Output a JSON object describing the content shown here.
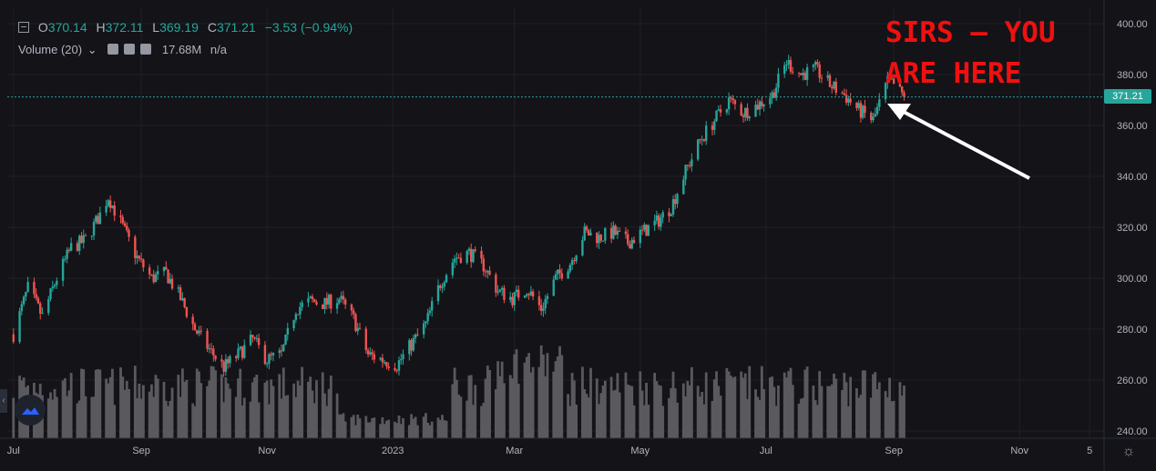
{
  "legend": {
    "open_label": "O",
    "open": "370.14",
    "high_label": "H",
    "high": "372.11",
    "low_label": "L",
    "low": "369.19",
    "close_label": "C",
    "close": "371.21",
    "change": "−3.53 (−0.94%)"
  },
  "volume_legend": {
    "label": "Volume (20)",
    "chevron": "⌄",
    "value": "17.68M",
    "extra": "n/a"
  },
  "annotation": {
    "line1": "SIRS — YOU",
    "line2": "ARE HERE"
  },
  "price_tag": "371.21",
  "icons": {
    "logo": "tradingview-cloud-icon",
    "settings": "gear-icon",
    "side_tab": "chevron-left-icon"
  },
  "colors": {
    "up": "#26a69a",
    "down": "#ef5350",
    "volume": "#5a5a5e",
    "background": "#131318",
    "annotation": "#f01010"
  },
  "chart_data": {
    "type": "candlestick",
    "title": "",
    "y_axis": {
      "ticks": [
        "400.00",
        "380.00",
        "360.00",
        "340.00",
        "320.00",
        "300.00",
        "280.00",
        "260.00",
        "240.00"
      ],
      "ylim": [
        240,
        400
      ]
    },
    "x_axis": {
      "ticks": [
        "Jul",
        "Sep",
        "Nov",
        "2023",
        "Mar",
        "May",
        "Jul",
        "Sep",
        "Nov",
        "5"
      ]
    },
    "grid": true,
    "last_price": 371.21,
    "price_path": [
      [
        "2022-07-01",
        278
      ],
      [
        "2022-07-08",
        296
      ],
      [
        "2022-07-15",
        285
      ],
      [
        "2022-07-22",
        300
      ],
      [
        "2022-07-29",
        312
      ],
      [
        "2022-08-05",
        315
      ],
      [
        "2022-08-12",
        325
      ],
      [
        "2022-08-16",
        332
      ],
      [
        "2022-08-23",
        320
      ],
      [
        "2022-08-30",
        308
      ],
      [
        "2022-09-06",
        300
      ],
      [
        "2022-09-13",
        302
      ],
      [
        "2022-09-20",
        292
      ],
      [
        "2022-09-27",
        280
      ],
      [
        "2022-10-04",
        272
      ],
      [
        "2022-10-11",
        265
      ],
      [
        "2022-10-18",
        270
      ],
      [
        "2022-10-25",
        276
      ],
      [
        "2022-11-01",
        268
      ],
      [
        "2022-11-08",
        270
      ],
      [
        "2022-11-15",
        288
      ],
      [
        "2022-11-22",
        291
      ],
      [
        "2022-11-29",
        290
      ],
      [
        "2022-12-06",
        292
      ],
      [
        "2022-12-13",
        284
      ],
      [
        "2022-12-20",
        270
      ],
      [
        "2022-12-27",
        268
      ],
      [
        "2023-01-03",
        266
      ],
      [
        "2023-01-10",
        274
      ],
      [
        "2023-01-17",
        282
      ],
      [
        "2023-01-24",
        298
      ],
      [
        "2023-01-31",
        308
      ],
      [
        "2023-02-07",
        310
      ],
      [
        "2023-02-14",
        305
      ],
      [
        "2023-02-21",
        295
      ],
      [
        "2023-02-28",
        292
      ],
      [
        "2023-03-07",
        296
      ],
      [
        "2023-03-14",
        288
      ],
      [
        "2023-03-21",
        300
      ],
      [
        "2023-03-28",
        306
      ],
      [
        "2023-04-04",
        318
      ],
      [
        "2023-04-11",
        316
      ],
      [
        "2023-04-18",
        318
      ],
      [
        "2023-04-25",
        314
      ],
      [
        "2023-05-02",
        318
      ],
      [
        "2023-05-09",
        322
      ],
      [
        "2023-05-16",
        328
      ],
      [
        "2023-05-23",
        342
      ],
      [
        "2023-05-30",
        354
      ],
      [
        "2023-06-06",
        362
      ],
      [
        "2023-06-13",
        370
      ],
      [
        "2023-06-20",
        365
      ],
      [
        "2023-06-27",
        368
      ],
      [
        "2023-07-04",
        372
      ],
      [
        "2023-07-11",
        385
      ],
      [
        "2023-07-18",
        380
      ],
      [
        "2023-07-25",
        382
      ],
      [
        "2023-08-01",
        376
      ],
      [
        "2023-08-08",
        372
      ],
      [
        "2023-08-15",
        366
      ],
      [
        "2023-08-22",
        362
      ],
      [
        "2023-08-29",
        377
      ],
      [
        "2023-09-01",
        376
      ],
      [
        "2023-09-06",
        371.21
      ]
    ],
    "volume_note": "relative volume bars shown beneath price, no scale printed"
  }
}
